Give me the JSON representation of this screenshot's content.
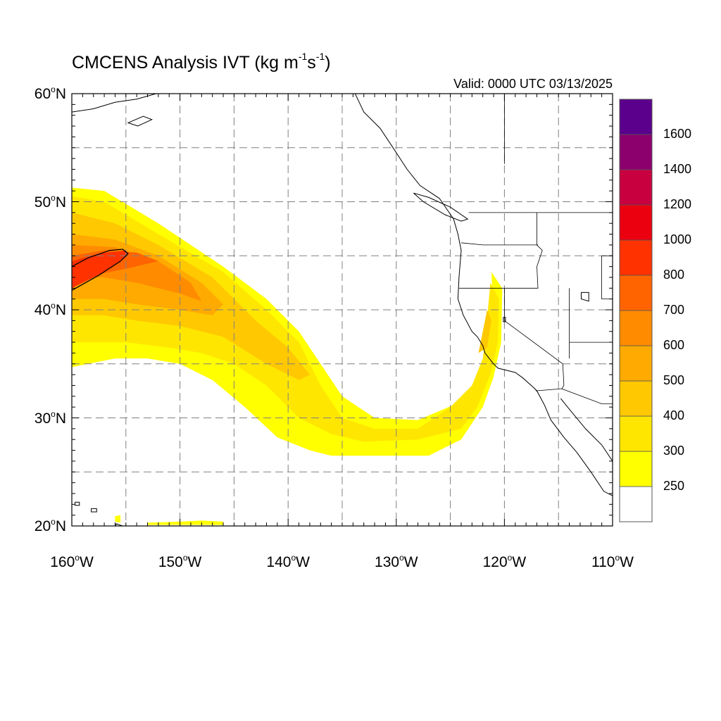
{
  "title": {
    "main": "CMCENS Analysis IVT (kg m",
    "exp1": "-1",
    "mid": "s",
    "exp2": "-1",
    "close": ")"
  },
  "valid": "Valid: 0000 UTC 03/13/2025",
  "map": {
    "lon_range": [
      -160,
      -110
    ],
    "lat_range": [
      20,
      60
    ],
    "grid_lons": [
      -155,
      -150,
      -145,
      -140,
      -135,
      -130,
      -125,
      -120,
      -115
    ],
    "grid_lats": [
      25,
      30,
      35,
      40,
      45,
      50,
      55
    ],
    "lat_labels": [
      {
        "lat": 60,
        "text": "60",
        "hemi": "N"
      },
      {
        "lat": 50,
        "text": "50",
        "hemi": "N"
      },
      {
        "lat": 40,
        "text": "40",
        "hemi": "N"
      },
      {
        "lat": 30,
        "text": "30",
        "hemi": "N"
      },
      {
        "lat": 20,
        "text": "20",
        "hemi": "N"
      }
    ],
    "lon_labels": [
      {
        "lon": -160,
        "text": "160",
        "hemi": "W"
      },
      {
        "lon": -150,
        "text": "150",
        "hemi": "W"
      },
      {
        "lon": -140,
        "text": "140",
        "hemi": "W"
      },
      {
        "lon": -130,
        "text": "130",
        "hemi": "W"
      },
      {
        "lon": -120,
        "text": "120",
        "hemi": "W"
      },
      {
        "lon": -110,
        "text": "110",
        "hemi": "W"
      }
    ]
  },
  "colorbar": {
    "bins": [
      {
        "color": "#ffffff",
        "label": ""
      },
      {
        "color": "#ffff00",
        "label": "250"
      },
      {
        "color": "#ffe600",
        "label": "300"
      },
      {
        "color": "#ffc800",
        "label": "400"
      },
      {
        "color": "#ffaa00",
        "label": "500"
      },
      {
        "color": "#ff8c00",
        "label": "600"
      },
      {
        "color": "#ff6400",
        "label": "700"
      },
      {
        "color": "#ff3200",
        "label": "800"
      },
      {
        "color": "#eb0010",
        "label": "1000"
      },
      {
        "color": "#c80040",
        "label": "1200"
      },
      {
        "color": "#8c006e",
        "label": "1400"
      },
      {
        "color": "#5a008c",
        "label": "1600"
      }
    ]
  },
  "ivt_regions": [
    {
      "level": 1,
      "color": "#ffff00",
      "points": [
        [
          -160,
          51.3
        ],
        [
          -157,
          51
        ],
        [
          -152,
          48
        ],
        [
          -146,
          44
        ],
        [
          -142,
          41
        ],
        [
          -139,
          38
        ],
        [
          -137,
          35
        ],
        [
          -135,
          32
        ],
        [
          -132,
          30
        ],
        [
          -128,
          29.8
        ],
        [
          -124,
          31.5
        ],
        [
          -122,
          33.5
        ],
        [
          -121.5,
          36
        ],
        [
          -121,
          39
        ],
        [
          -121.2,
          43.5
        ],
        [
          -120.2,
          42
        ],
        [
          -120.3,
          37
        ],
        [
          -121,
          33.8
        ],
        [
          -122,
          31
        ],
        [
          -124,
          28
        ],
        [
          -127,
          26.5
        ],
        [
          -132,
          26.5
        ],
        [
          -136,
          26.5
        ],
        [
          -138,
          27
        ],
        [
          -141,
          28.2
        ],
        [
          -144,
          31
        ],
        [
          -147,
          33.5
        ],
        [
          -150,
          35
        ],
        [
          -153,
          35.5
        ],
        [
          -156,
          35.5
        ],
        [
          -160,
          34.7
        ]
      ]
    },
    {
      "level": 2,
      "color": "#ffe600",
      "points": [
        [
          -160,
          50.5
        ],
        [
          -157,
          50
        ],
        [
          -152,
          47
        ],
        [
          -146,
          43.5
        ],
        [
          -142,
          40
        ],
        [
          -139,
          37
        ],
        [
          -137,
          33
        ],
        [
          -135,
          30
        ],
        [
          -132,
          29
        ],
        [
          -128,
          29
        ],
        [
          -125,
          31
        ],
        [
          -123,
          33
        ],
        [
          -122,
          35.5
        ],
        [
          -121.7,
          38
        ],
        [
          -121.3,
          42.5
        ],
        [
          -120.5,
          41
        ],
        [
          -120.6,
          37
        ],
        [
          -121.3,
          34
        ],
        [
          -122.5,
          31
        ],
        [
          -124,
          29
        ],
        [
          -128,
          28
        ],
        [
          -133,
          27.8
        ],
        [
          -136,
          28.5
        ],
        [
          -139,
          30
        ],
        [
          -142,
          33
        ],
        [
          -145,
          35
        ],
        [
          -148,
          36
        ],
        [
          -151,
          36.5
        ],
        [
          -155,
          37
        ],
        [
          -160,
          37
        ]
      ]
    },
    {
      "level": 3,
      "color": "#ffc800",
      "points": [
        [
          -160,
          49
        ],
        [
          -156,
          48
        ],
        [
          -152,
          46
        ],
        [
          -147,
          43
        ],
        [
          -143,
          39
        ],
        [
          -140,
          36.5
        ],
        [
          -138,
          34
        ],
        [
          -139,
          33.5
        ],
        [
          -142,
          35
        ],
        [
          -146,
          37.5
        ],
        [
          -150,
          38.5
        ],
        [
          -154,
          39
        ],
        [
          -157,
          39.5
        ],
        [
          -160,
          39.5
        ]
      ]
    },
    {
      "level": 3,
      "color": "#ffc800",
      "points": [
        [
          -122.4,
          36
        ],
        [
          -121.6,
          36.5
        ],
        [
          -121.2,
          39
        ],
        [
          -121.6,
          40
        ],
        [
          -122,
          38
        ]
      ]
    },
    {
      "level": 4,
      "color": "#ffaa00",
      "points": [
        [
          -160,
          47
        ],
        [
          -156,
          46.5
        ],
        [
          -152,
          45
        ],
        [
          -148,
          42.5
        ],
        [
          -146,
          40.5
        ],
        [
          -147,
          39.5
        ],
        [
          -150,
          40
        ],
        [
          -154,
          40.5
        ],
        [
          -157,
          41
        ],
        [
          -160,
          41
        ]
      ]
    },
    {
      "level": 5,
      "color": "#ff8c00",
      "points": [
        [
          -160,
          46
        ],
        [
          -156,
          45.8
        ],
        [
          -152,
          44.5
        ],
        [
          -149,
          42.5
        ],
        [
          -148,
          40.8
        ],
        [
          -150,
          41.5
        ],
        [
          -154,
          42.5
        ],
        [
          -157,
          43
        ],
        [
          -160,
          43.2
        ]
      ]
    },
    {
      "level": 6,
      "color": "#ff6400",
      "points": [
        [
          -160,
          45
        ],
        [
          -157,
          45.5
        ],
        [
          -154,
          45.3
        ],
        [
          -152,
          44.5
        ],
        [
          -155,
          43.8
        ],
        [
          -158,
          43.2
        ],
        [
          -160,
          43
        ]
      ]
    },
    {
      "level": 7,
      "color": "#ff3200",
      "points": [
        [
          -160,
          44.5
        ],
        [
          -157.5,
          45.2
        ],
        [
          -155,
          45.5
        ],
        [
          -154.8,
          45
        ],
        [
          -157,
          43.5
        ],
        [
          -160,
          42
        ]
      ]
    },
    {
      "level": 1,
      "color": "#ffff00",
      "points": [
        [
          -150,
          20.4
        ],
        [
          -148,
          20.5
        ],
        [
          -146,
          20.4
        ],
        [
          -146,
          20.1
        ],
        [
          -153,
          20.1
        ],
        [
          -153,
          20.3
        ]
      ]
    },
    {
      "level": 1,
      "color": "#ffff00",
      "points": [
        [
          -156,
          20.9
        ],
        [
          -155.5,
          21
        ],
        [
          -155.5,
          20.3
        ],
        [
          -156,
          20.4
        ]
      ]
    }
  ],
  "contour_1000": [
    [
      -160,
      41.8
    ],
    [
      -157.5,
      43.2
    ],
    [
      -155.5,
      44.5
    ],
    [
      -154.8,
      45.2
    ],
    [
      -155.3,
      45.6
    ],
    [
      -156.5,
      45.5
    ],
    [
      -158.5,
      44.8
    ],
    [
      -160,
      44
    ]
  ],
  "coastline": {
    "pacific_nw": [
      [
        -133.8,
        60
      ],
      [
        -133,
        58.3
      ],
      [
        -131.5,
        56.8
      ],
      [
        -130.3,
        55
      ],
      [
        -129,
        53
      ],
      [
        -127.8,
        51.5
      ],
      [
        -126,
        50.3
      ],
      [
        -124.7,
        48.4
      ],
      [
        -124.3,
        47
      ],
      [
        -124,
        45.5
      ],
      [
        -124.2,
        43
      ],
      [
        -124.3,
        41
      ],
      [
        -123.8,
        39.5
      ],
      [
        -123,
        38
      ],
      [
        -122.5,
        37.5
      ],
      [
        -122,
        36.7
      ],
      [
        -121.8,
        36
      ],
      [
        -121,
        35
      ],
      [
        -120.6,
        34.6
      ],
      [
        -119,
        34.2
      ],
      [
        -118.3,
        33.7
      ],
      [
        -117.3,
        32.8
      ],
      [
        -117,
        32.5
      ],
      [
        -116.3,
        31.2
      ],
      [
        -115.7,
        29.8
      ],
      [
        -114.5,
        28.2
      ],
      [
        -113.3,
        26.8
      ],
      [
        -112,
        25
      ],
      [
        -110.8,
        23.2
      ],
      [
        -110,
        22.8
      ]
    ],
    "gulf_ca": [
      [
        -110,
        26
      ],
      [
        -111,
        27.5
      ],
      [
        -112.5,
        29
      ],
      [
        -114,
        30.8
      ],
      [
        -114.8,
        31.8
      ]
    ],
    "vancouver_island": [
      [
        -128.4,
        50.8
      ],
      [
        -127,
        50.4
      ],
      [
        -125,
        49.5
      ],
      [
        -123.4,
        48.4
      ],
      [
        -124,
        48.2
      ],
      [
        -125.5,
        48.8
      ],
      [
        -127.5,
        50
      ]
    ],
    "alaska": [
      [
        -160,
        58.3
      ],
      [
        -158,
        58.6
      ],
      [
        -156,
        59.2
      ],
      [
        -154,
        59.5
      ],
      [
        -152.2,
        60
      ]
    ],
    "kodiak": [
      [
        -154.8,
        57.3
      ],
      [
        -153.4,
        57.9
      ],
      [
        -152.6,
        57.6
      ],
      [
        -153.9,
        57
      ]
    ],
    "hawaii_kauai": [
      [
        -159.7,
        22.2
      ],
      [
        -159.3,
        22.2
      ],
      [
        -159.3,
        21.9
      ],
      [
        -159.7,
        21.9
      ]
    ],
    "hawaii_oahu": [
      [
        -158.2,
        21.6
      ],
      [
        -157.7,
        21.6
      ],
      [
        -157.7,
        21.3
      ],
      [
        -158.2,
        21.3
      ]
    ],
    "hawaii_big": [
      [
        -155.9,
        20.2
      ],
      [
        -155,
        19.9
      ],
      [
        -155.5,
        19.6
      ],
      [
        -156,
        19.8
      ]
    ]
  },
  "borders": [
    [
      [
        -123.3,
        49
      ],
      [
        -110,
        49
      ]
    ],
    [
      [
        -117,
        49
      ],
      [
        -117,
        46
      ],
      [
        -116.5,
        45.5
      ],
      [
        -117,
        44
      ],
      [
        -116.9,
        42
      ],
      [
        -124.2,
        42
      ]
    ],
    [
      [
        -124,
        46.2
      ],
      [
        -122,
        46
      ],
      [
        -119,
        46
      ],
      [
        -116.9,
        46
      ]
    ],
    [
      [
        -120,
        42
      ],
      [
        -120,
        39
      ],
      [
        -114.6,
        35
      ],
      [
        -114.5,
        33
      ],
      [
        -114.7,
        32.7
      ],
      [
        -117.1,
        32.5
      ]
    ],
    [
      [
        -114.7,
        32.7
      ],
      [
        -111,
        31.3
      ],
      [
        -108,
        31.3
      ]
    ],
    [
      [
        -114,
        42
      ],
      [
        -114,
        37
      ],
      [
        -114,
        35.5
      ]
    ],
    [
      [
        -114,
        37
      ],
      [
        -110,
        37
      ]
    ],
    [
      [
        -111,
        45
      ],
      [
        -111,
        41
      ],
      [
        -110,
        41
      ]
    ],
    [
      [
        -111,
        45
      ],
      [
        -110,
        45
      ]
    ],
    [
      [
        -141,
        60
      ],
      [
        -141,
        60.0
      ]
    ],
    [
      [
        -120,
        60
      ],
      [
        -120,
        54
      ],
      [
        -120,
        53.5
      ]
    ]
  ],
  "lakes": [
    [
      [
        -112.9,
        41.6
      ],
      [
        -112.2,
        41.6
      ],
      [
        -112.2,
        40.8
      ],
      [
        -112.9,
        41
      ]
    ],
    [
      [
        -120.1,
        39.3
      ],
      [
        -119.9,
        39.3
      ],
      [
        -119.9,
        38.9
      ],
      [
        -120.1,
        38.9
      ]
    ]
  ]
}
